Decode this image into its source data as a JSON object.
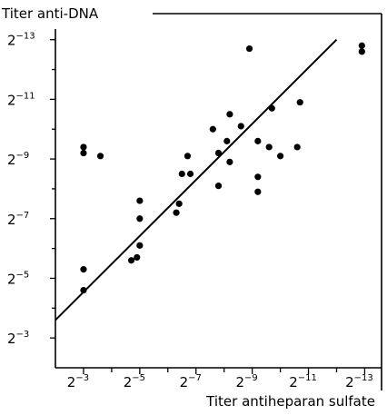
{
  "chart_data": {
    "type": "scatter",
    "title": "",
    "ylabel": "Titer anti-DNA",
    "xlabel": "Titer antiheparan sulfate",
    "x_scale": "log2 (reciprocal titer)",
    "y_scale": "log2 (reciprocal titer)",
    "xlim": [
      2,
      13.6
    ],
    "ylim": [
      2,
      13.6
    ],
    "x_ticks": [
      {
        "base": "2",
        "exp": "−3",
        "value": 3
      },
      {
        "base": "2",
        "exp": "−5",
        "value": 5
      },
      {
        "base": "2",
        "exp": "−7",
        "value": 7
      },
      {
        "base": "2",
        "exp": "−9",
        "value": 9
      },
      {
        "base": "2",
        "exp": "−11",
        "value": 11
      },
      {
        "base": "2",
        "exp": "−13",
        "value": 13
      }
    ],
    "y_ticks": [
      {
        "base": "2",
        "exp": "−3",
        "value": 3
      },
      {
        "base": "2",
        "exp": "−5",
        "value": 5
      },
      {
        "base": "2",
        "exp": "−7",
        "value": 7
      },
      {
        "base": "2",
        "exp": "−9",
        "value": 9
      },
      {
        "base": "2",
        "exp": "−11",
        "value": 11
      },
      {
        "base": "2",
        "exp": "−13",
        "value": 13
      }
    ],
    "grid": false,
    "series": [
      {
        "x": [
          3.0,
          3.0,
          3.0,
          3.0,
          3.6,
          4.7,
          4.9,
          5.0,
          5.0,
          5.0,
          6.3,
          6.4,
          6.5,
          6.7,
          6.8,
          7.6,
          7.8,
          7.8,
          8.1,
          8.2,
          8.2,
          8.6,
          8.9,
          9.2,
          9.2,
          9.2,
          9.6,
          9.7,
          10.0,
          10.6,
          10.7,
          12.9,
          12.9
        ],
        "y": [
          4.6,
          5.3,
          9.2,
          9.4,
          9.1,
          5.6,
          5.7,
          6.1,
          7.0,
          7.6,
          7.2,
          7.5,
          8.5,
          9.1,
          8.5,
          10.0,
          9.2,
          8.1,
          9.6,
          8.9,
          10.5,
          10.1,
          12.7,
          7.9,
          8.4,
          9.6,
          9.4,
          10.7,
          9.1,
          9.4,
          10.9,
          12.6,
          12.8
        ]
      }
    ],
    "regression_line": {
      "x": [
        2.0,
        12.0
      ],
      "y": [
        3.6,
        13.0
      ]
    }
  }
}
